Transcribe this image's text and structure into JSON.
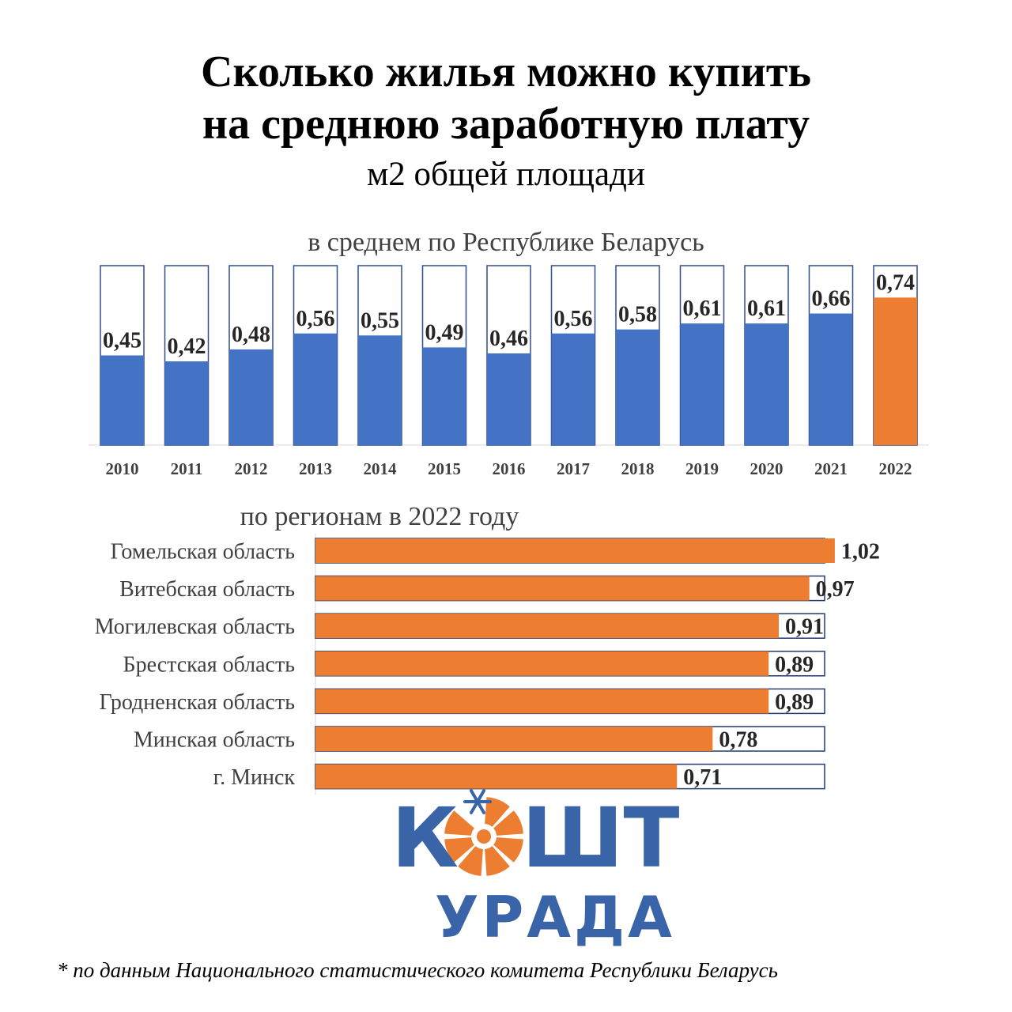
{
  "header": {
    "title_line1": "Сколько жилья можно купить",
    "title_line2": "на среднюю заработную плату",
    "subtitle": "м2 общей площади"
  },
  "chart_data": [
    {
      "type": "bar",
      "title": "в среднем по Республике Беларусь",
      "categories": [
        "2010",
        "2011",
        "2012",
        "2013",
        "2014",
        "2015",
        "2016",
        "2017",
        "2018",
        "2019",
        "2020",
        "2021",
        "2022"
      ],
      "values": [
        0.45,
        0.42,
        0.48,
        0.56,
        0.55,
        0.49,
        0.46,
        0.56,
        0.58,
        0.61,
        0.61,
        0.66,
        0.74
      ],
      "value_labels": [
        "0,45",
        "0,42",
        "0,48",
        "0,56",
        "0,55",
        "0,49",
        "0,46",
        "0,56",
        "0,58",
        "0,61",
        "0,61",
        "0,66",
        "0,74"
      ],
      "ylim": [
        0,
        0.9
      ],
      "grid": false,
      "colors": {
        "default": "#4472c4",
        "highlight": "#ed7d31",
        "highlight_index": 12
      }
    },
    {
      "type": "bar",
      "orientation": "horizontal",
      "title": "по регионам в 2022 году",
      "categories": [
        "Гомельская область",
        "Витебская область",
        "Могилевская область",
        "Брестская область",
        "Гродненская область",
        "Минская область",
        "г. Минск"
      ],
      "values": [
        1.02,
        0.97,
        0.91,
        0.89,
        0.89,
        0.78,
        0.71
      ],
      "value_labels": [
        "1,02",
        "0,97",
        "0,91",
        "0,89",
        "0,89",
        "0,78",
        "0,71"
      ],
      "xlim": [
        0,
        1.0
      ],
      "grid": false,
      "colors": {
        "default": "#ed7d31"
      }
    }
  ],
  "logo": {
    "word1_a": "К",
    "word1_b": "ШТ",
    "word2": "УРАДА",
    "colors": {
      "blue": "#3a64a8",
      "orange": "#ed7d31"
    }
  },
  "footnote": "* по данным Национального статистического комитета Республики Беларусь"
}
